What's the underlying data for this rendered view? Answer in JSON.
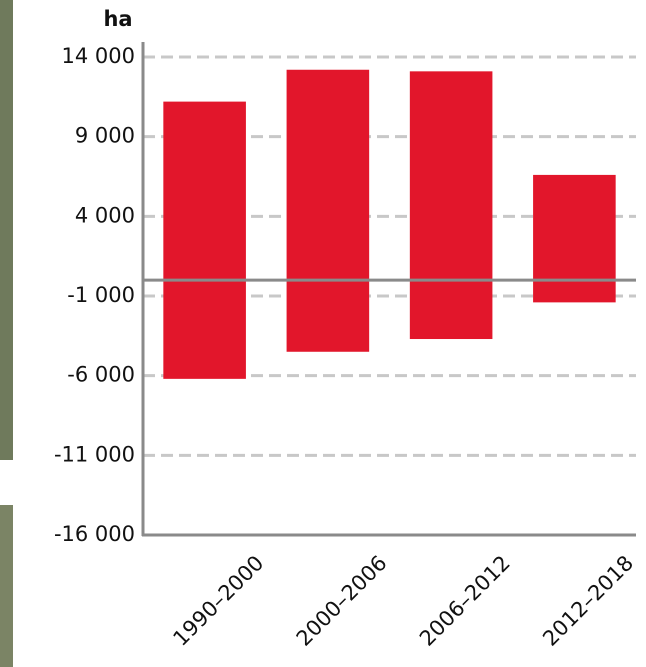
{
  "chart_data": {
    "type": "bar",
    "y_label": "ha",
    "categories": [
      "1990–2000",
      "2000–2006",
      "2006–2012",
      "2012–2018"
    ],
    "series": [
      {
        "color": "#e2162b",
        "values": [
          11200,
          13200,
          13100,
          6600
        ]
      },
      {
        "color": "#e2162b",
        "values": [
          -6200,
          -4500,
          -3700,
          -1400
        ]
      }
    ],
    "ylim": [
      -16000,
      14000
    ],
    "yticks": [
      {
        "value": -16000,
        "label": "-16 000"
      },
      {
        "value": -11000,
        "label": "-11 000"
      },
      {
        "value": -6000,
        "label": "-6 000"
      },
      {
        "value": -1000,
        "label": "-1 000"
      },
      {
        "value": 4000,
        "label": "4 000"
      },
      {
        "value": 9000,
        "label": "9 000"
      },
      {
        "value": 14000,
        "label": "14 000"
      }
    ],
    "grid": true
  }
}
